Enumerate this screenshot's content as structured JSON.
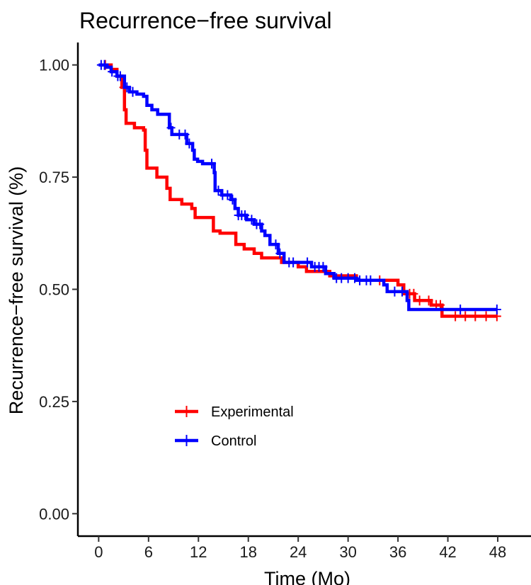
{
  "chart_data": {
    "type": "line",
    "subtype": "kaplan-meier-step",
    "title": "Recurrence−free survival",
    "xlabel": "Time (Mo)",
    "ylabel": "Recurrence−free survival (%)",
    "xlim": [
      -2.5,
      52
    ],
    "ylim": [
      -0.05,
      1.05
    ],
    "x_ticks": [
      0,
      6,
      12,
      18,
      24,
      30,
      36,
      42,
      48
    ],
    "x_tick_labels": [
      "0",
      "6",
      "12",
      "18",
      "24",
      "30",
      "36",
      "42",
      "48"
    ],
    "y_ticks": [
      0,
      0.25,
      0.5,
      0.75,
      1.0
    ],
    "y_tick_labels": [
      "0.00",
      "0.25",
      "0.50",
      "0.75",
      "1.00"
    ],
    "legend_position": "bottom-left",
    "series": [
      {
        "name": "Experimental",
        "color": "#ff0000",
        "steps": [
          [
            0,
            1.0
          ],
          [
            1.5,
            0.99
          ],
          [
            2.2,
            0.975
          ],
          [
            2.8,
            0.95
          ],
          [
            3.1,
            0.9
          ],
          [
            3.3,
            0.87
          ],
          [
            4.3,
            0.86
          ],
          [
            5.4,
            0.855
          ],
          [
            5.6,
            0.81
          ],
          [
            5.8,
            0.77
          ],
          [
            7.0,
            0.75
          ],
          [
            8.2,
            0.725
          ],
          [
            8.6,
            0.7
          ],
          [
            10.0,
            0.69
          ],
          [
            11.2,
            0.68
          ],
          [
            11.6,
            0.66
          ],
          [
            13.8,
            0.63
          ],
          [
            14.6,
            0.625
          ],
          [
            16.5,
            0.6
          ],
          [
            17.5,
            0.59
          ],
          [
            18.7,
            0.58
          ],
          [
            19.6,
            0.57
          ],
          [
            22.0,
            0.56
          ],
          [
            24.0,
            0.55
          ],
          [
            25.0,
            0.54
          ],
          [
            27.8,
            0.53
          ],
          [
            31.0,
            0.52
          ],
          [
            36.0,
            0.51
          ],
          [
            36.7,
            0.49
          ],
          [
            38.0,
            0.475
          ],
          [
            40.0,
            0.465
          ],
          [
            41.3,
            0.44
          ],
          [
            47.9,
            0.44
          ]
        ],
        "censor_x": [
          0.8,
          3.0,
          33.8,
          37.4,
          37.9,
          38.6,
          39.7,
          40.6,
          41.1,
          42.9,
          44.1,
          45.3,
          46.6,
          47.9
        ]
      },
      {
        "name": "Control",
        "color": "#0000ff",
        "steps": [
          [
            0,
            1.0
          ],
          [
            1.0,
            0.995
          ],
          [
            1.5,
            0.985
          ],
          [
            2.2,
            0.975
          ],
          [
            3.1,
            0.95
          ],
          [
            3.7,
            0.94
          ],
          [
            4.6,
            0.935
          ],
          [
            5.4,
            0.93
          ],
          [
            5.8,
            0.91
          ],
          [
            6.4,
            0.9
          ],
          [
            7.1,
            0.89
          ],
          [
            8.5,
            0.86
          ],
          [
            8.8,
            0.845
          ],
          [
            10.6,
            0.825
          ],
          [
            11.3,
            0.81
          ],
          [
            11.5,
            0.79
          ],
          [
            11.9,
            0.785
          ],
          [
            12.5,
            0.78
          ],
          [
            13.9,
            0.76
          ],
          [
            14.0,
            0.72
          ],
          [
            14.8,
            0.71
          ],
          [
            15.9,
            0.7
          ],
          [
            16.4,
            0.68
          ],
          [
            16.8,
            0.665
          ],
          [
            17.8,
            0.655
          ],
          [
            18.7,
            0.645
          ],
          [
            19.6,
            0.63
          ],
          [
            20.0,
            0.62
          ],
          [
            20.6,
            0.6
          ],
          [
            21.6,
            0.58
          ],
          [
            22.3,
            0.56
          ],
          [
            25.6,
            0.55
          ],
          [
            27.3,
            0.535
          ],
          [
            28.3,
            0.525
          ],
          [
            31.0,
            0.52
          ],
          [
            34.3,
            0.51
          ],
          [
            34.7,
            0.495
          ],
          [
            37.1,
            0.475
          ],
          [
            37.3,
            0.455
          ],
          [
            47.9,
            0.455
          ]
        ],
        "censor_x": [
          0.3,
          0.7,
          1.6,
          2.3,
          2.6,
          3.4,
          4.1,
          8.7,
          9.7,
          10.4,
          10.9,
          13.6,
          14.4,
          14.9,
          15.5,
          16.1,
          16.8,
          17.2,
          17.6,
          18.4,
          19.0,
          19.4,
          21.3,
          21.8,
          22.9,
          23.4,
          25.1,
          26.0,
          26.5,
          27.0,
          28.6,
          29.2,
          30.0,
          30.8,
          31.4,
          32.2,
          32.7,
          35.6,
          36.5,
          43.5,
          47.9
        ]
      }
    ]
  }
}
